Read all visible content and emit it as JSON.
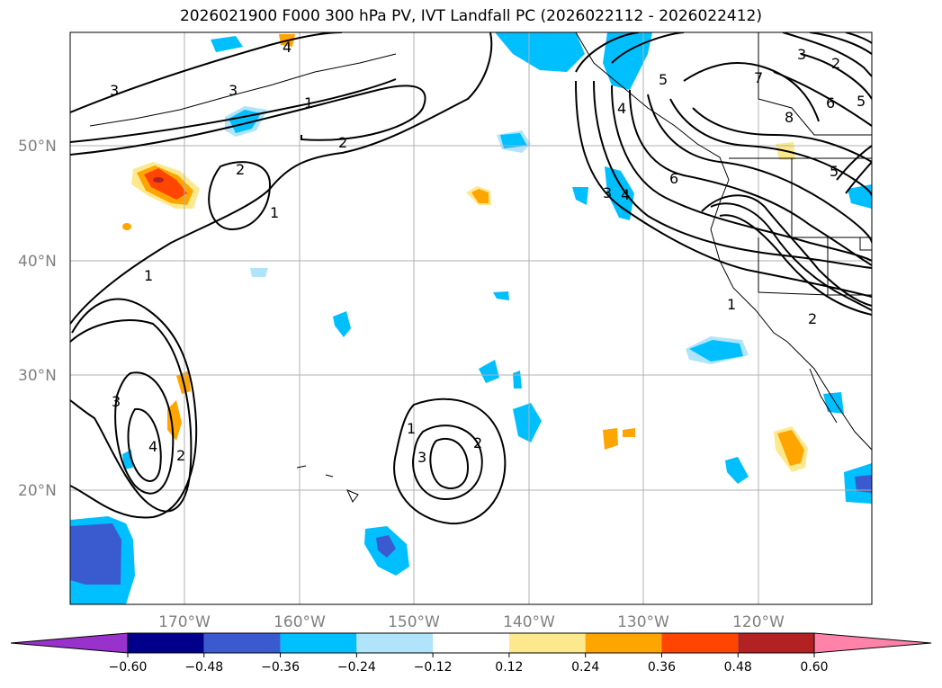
{
  "title": "2026021900 F000 300 hPa PV, IVT Landfall PC (2026022112 - 2026022412)",
  "lon_labels": [
    "170°W",
    "160°W",
    "150°W",
    "140°W",
    "130°W",
    "120°W"
  ],
  "lat_labels": [
    "50°N",
    "40°N",
    "30°N",
    "20°N"
  ],
  "contour_labels": [
    "3",
    "3",
    "1",
    "2",
    "2",
    "1",
    "1",
    "3",
    "4",
    "2",
    "1",
    "3",
    "2",
    "4",
    "5",
    "4",
    "7",
    "3",
    "2",
    "8",
    "6",
    "5",
    "6",
    "3",
    "5",
    "2",
    "1",
    "4"
  ],
  "colorbar": {
    "ticks": [
      "−0.60",
      "−0.48",
      "−0.36",
      "−0.24",
      "−0.12",
      "0.12",
      "0.24",
      "0.36",
      "0.48",
      "0.60"
    ],
    "colors": [
      "#9932cc",
      "#00008b",
      "#3a5bcf",
      "#00bfff",
      "#afe4fa",
      "#ffffff",
      "#fde98d",
      "#ffa500",
      "#ff4500",
      "#b22222",
      "#ff82ab"
    ]
  }
}
